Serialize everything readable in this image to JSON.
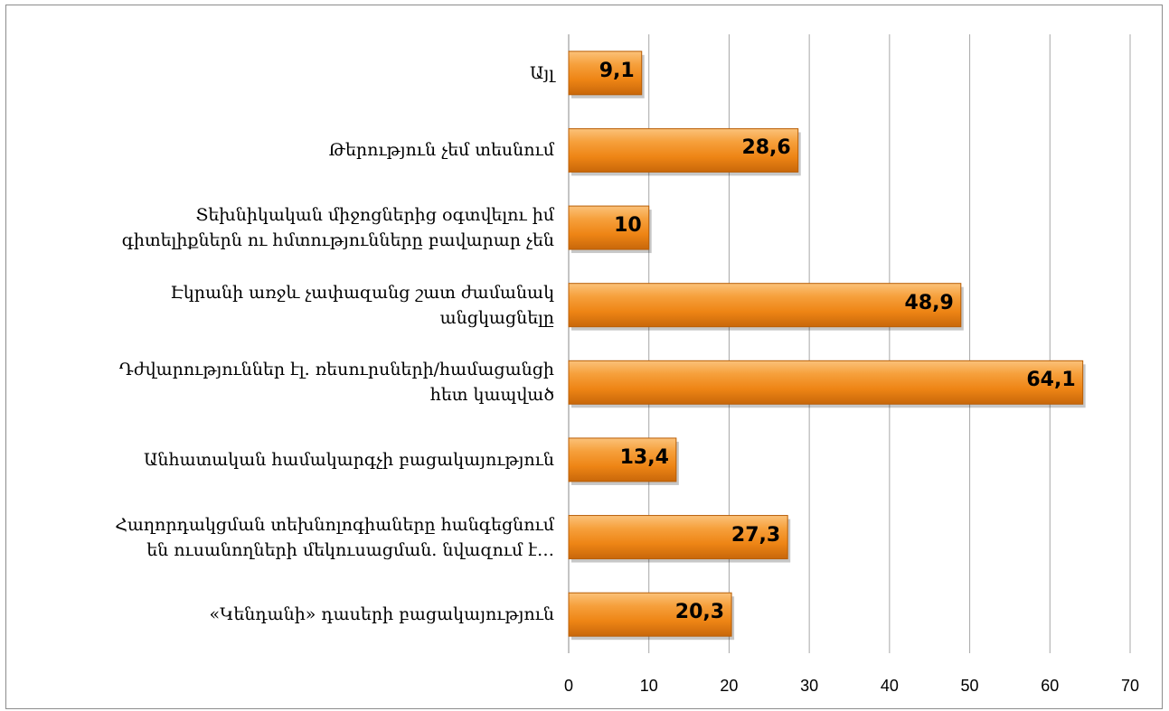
{
  "chart_data": {
    "type": "bar",
    "orientation": "horizontal",
    "title": "",
    "xlabel": "",
    "ylabel": "",
    "xlim": [
      0,
      70
    ],
    "xticks": [
      0,
      10,
      20,
      30,
      40,
      50,
      60,
      70
    ],
    "grid": true,
    "legend": "none",
    "bar_color": "#f28a16",
    "categories": [
      "Այլ",
      "Թերություն չեմ տեսնում",
      "Տեխնիկական միջոցներից օգտվելու իմ գիտելիքներն ու հմտությունները բավարար չեն",
      "Էկրանի առջև չափազանց շատ ժամանակ անցկացնելը",
      "Դժվարություններ էլ. ռեսուրսների/համացանցի հետ կապված",
      "Անհատական համակարգչի բացակայություն",
      "Հաղորդակցման տեխնոլոգիաները հանգեցնում են ուսանողների մեկուսացման. նվազում է…",
      "«Կենդանի» դասերի բացակայություն"
    ],
    "category_lines": [
      [
        "Այլ"
      ],
      [
        "Թերություն չեմ տեսնում"
      ],
      [
        "Տեխնիկական միջոցներից օգտվելու իմ",
        "գիտելիքներն ու հմտությունները բավարար չեն"
      ],
      [
        "Էկրանի առջև չափազանց շատ ժամանակ",
        "անցկացնելը"
      ],
      [
        "Դժվարություններ էլ. ռեսուրսների/համացանցի",
        "հետ կապված"
      ],
      [
        "Անհատական համակարգչի բացակայություն"
      ],
      [
        "Հաղորդակցման տեխնոլոգիաները հանգեցնում",
        "են ուսանողների մեկուսացման. նվազում է…"
      ],
      [
        "«Կենդանի» դասերի բացակայություն"
      ]
    ],
    "values": [
      9.1,
      28.6,
      10,
      48.9,
      64.1,
      13.4,
      27.3,
      20.3
    ],
    "data_labels": [
      "9,1",
      "28,6",
      "10",
      "48,9",
      "64,1",
      "13,4",
      "27,3",
      "20,3"
    ]
  }
}
